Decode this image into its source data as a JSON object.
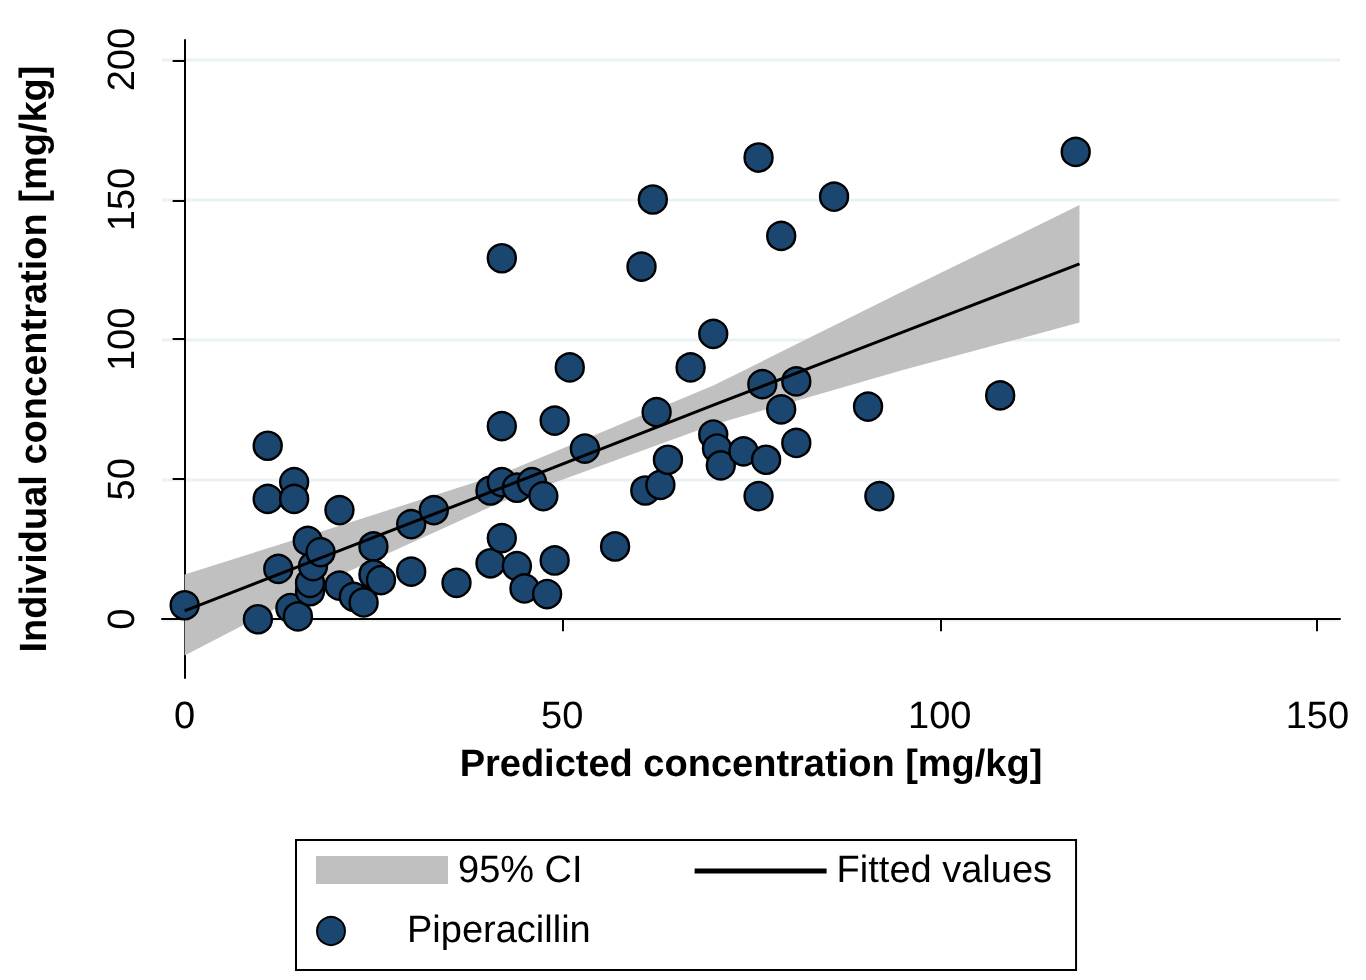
{
  "chart_data": {
    "type": "scatter",
    "xlabel": "Predicted concentration [mg/kg]",
    "ylabel": "Individual concentration [mg/kg]",
    "xlim": [
      -3,
      153
    ],
    "ylim": [
      -21,
      207
    ],
    "xticks": [
      0,
      50,
      100,
      150
    ],
    "yticks": [
      0,
      50,
      100,
      150,
      200
    ],
    "grid": "y",
    "legend": "bottom",
    "marker": "circle",
    "annotations": [
      "95% CI"
    ],
    "series": [
      {
        "name": "Fitted values",
        "type": "line",
        "color": "#000000",
        "marker": "none",
        "line_style": "solid",
        "x": [
          0,
          20,
          42,
          70,
          95,
          118.5
        ],
        "values": [
          3,
          24,
          47,
          76.5,
          102.5,
          127
        ],
        "lower": [
          -13,
          15,
          42,
          69.5,
          89,
          106
        ],
        "upper": [
          16,
          33,
          52,
          83.5,
          117,
          148
        ]
      },
      {
        "name": "Piperacillin",
        "color": "#1a4670",
        "x": [
          0,
          9.7,
          11,
          11,
          12.4,
          14,
          15,
          14.5,
          14.5,
          16.3,
          16.6,
          16.6,
          17,
          18,
          20.5,
          20.5,
          22.4,
          23.7,
          25,
          25,
          26,
          30,
          30,
          33,
          36,
          40.5,
          40.5,
          42,
          42,
          42,
          42,
          44,
          44,
          45,
          46,
          47.5,
          48,
          49,
          49,
          51,
          53,
          57,
          60.5,
          61,
          62,
          62.5,
          63,
          64,
          67,
          70,
          70,
          70.5,
          71,
          74,
          76,
          76,
          76.5,
          77,
          79,
          79,
          81,
          81,
          86,
          90.5,
          92,
          108,
          118
        ],
        "values": [
          5,
          0,
          62,
          43,
          18,
          4,
          1,
          49,
          43,
          28,
          10,
          13,
          19,
          24,
          39,
          12,
          8,
          6,
          26,
          16,
          14,
          34,
          17,
          39,
          13,
          46,
          20,
          29,
          69,
          129,
          49,
          47,
          19,
          11,
          49,
          44,
          9,
          71,
          21,
          90,
          61,
          26,
          126,
          46,
          150,
          74,
          48,
          57,
          90,
          102,
          66,
          61,
          55,
          60,
          165,
          44,
          84,
          57,
          137,
          75,
          85,
          63,
          151,
          76,
          44,
          80,
          167
        ]
      }
    ]
  }
}
